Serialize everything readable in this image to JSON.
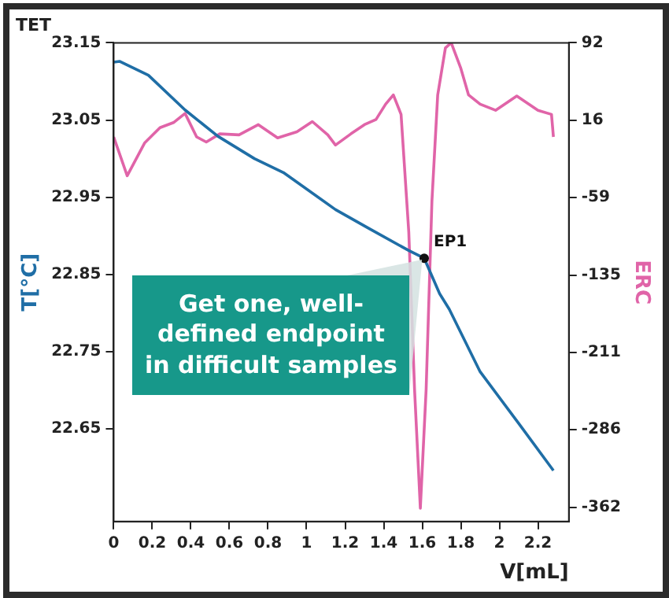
{
  "chart_data": {
    "type": "line",
    "title": "TET",
    "xlabel": "V[mL]",
    "ylabel": "T[°C]",
    "y2label": "ERC",
    "xlim": [
      0,
      2.36
    ],
    "xticks": [
      0,
      0.2,
      0.4,
      0.6,
      0.8,
      1,
      1.2,
      1.4,
      1.6,
      1.8,
      2,
      2.2
    ],
    "ylim": [
      22.53,
      23.15
    ],
    "yticks": [
      22.65,
      22.75,
      22.85,
      22.95,
      23.05,
      23.15
    ],
    "y2lim": [
      -376,
      92
    ],
    "y2ticks": [
      -362,
      -286,
      -211,
      -135,
      -59,
      16,
      92
    ],
    "grid": false,
    "legend": false,
    "marker": "none",
    "line_style": "solid",
    "series": [
      {
        "color": "#1f6ea6",
        "x": [
          0,
          0.03,
          0.18,
          0.37,
          0.54,
          0.73,
          0.88,
          1.15,
          1.32,
          1.53,
          1.61,
          1.69,
          1.74,
          1.9,
          2.1,
          2.28
        ],
        "values": [
          23.125,
          23.126,
          23.108,
          23.063,
          23.029,
          23.0,
          22.982,
          22.934,
          22.91,
          22.881,
          22.871,
          22.825,
          22.805,
          22.724,
          22.657,
          22.596
        ]
      },
      {
        "color": "#e064a8",
        "axis": "y2",
        "x": [
          0,
          0.07,
          0.16,
          0.24,
          0.31,
          0.37,
          0.43,
          0.48,
          0.55,
          0.65,
          0.75,
          0.85,
          0.95,
          1.03,
          1.11,
          1.15,
          1.23,
          1.3,
          1.36,
          1.41,
          1.45,
          1.49,
          1.53,
          1.56,
          1.59,
          1.62,
          1.65,
          1.68,
          1.72,
          1.75,
          1.8,
          1.84,
          1.9,
          1.98,
          2.09,
          2.2,
          2.27,
          2.28
        ],
        "values": [
          0,
          -38,
          -6,
          9,
          14,
          23,
          0,
          -5,
          3,
          2,
          12,
          -1,
          5,
          15,
          2,
          -8,
          3,
          12,
          17,
          32,
          41,
          22,
          -93,
          -247,
          -363,
          -247,
          -63,
          41,
          87,
          92,
          67,
          41,
          32,
          26,
          40,
          26,
          22,
          0
        ]
      }
    ],
    "annotations": [
      {
        "text": "EP1",
        "x": 1.61,
        "y": 22.871
      },
      "Get one, well-defined endpoint in difficult samples"
    ]
  }
}
